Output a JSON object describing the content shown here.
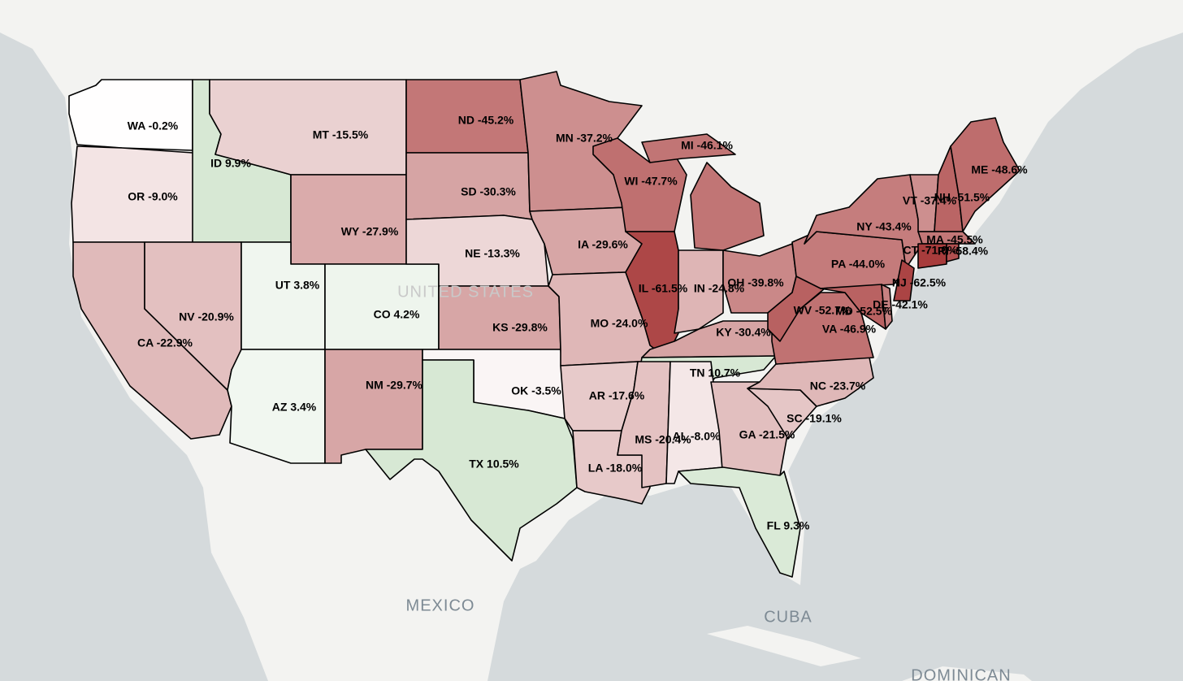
{
  "basemap_labels": [
    "UNITED STATES",
    "MEXICO",
    "CUBA",
    "DOMINICAN"
  ],
  "states": [
    {
      "label": "WA -0.2%",
      "value": -0.2
    },
    {
      "label": "OR -9.0%",
      "value": -9.0
    },
    {
      "label": "CA -22.9%",
      "value": -22.9
    },
    {
      "label": "ID 9.9%",
      "value": 9.9
    },
    {
      "label": "NV -20.9%",
      "value": -20.9
    },
    {
      "label": "MT -15.5%",
      "value": -15.5
    },
    {
      "label": "WY -27.9%",
      "value": -27.9
    },
    {
      "label": "UT 3.8%",
      "value": 3.8
    },
    {
      "label": "AZ 3.4%",
      "value": 3.4
    },
    {
      "label": "CO 4.2%",
      "value": 4.2
    },
    {
      "label": "NM -29.7%",
      "value": -29.7
    },
    {
      "label": "ND -45.2%",
      "value": -45.2
    },
    {
      "label": "SD -30.3%",
      "value": -30.3
    },
    {
      "label": "NE -13.3%",
      "value": -13.3
    },
    {
      "label": "KS -29.8%",
      "value": -29.8
    },
    {
      "label": "OK -3.5%",
      "value": -3.5
    },
    {
      "label": "TX 10.5%",
      "value": 10.5
    },
    {
      "label": "MN -37.2%",
      "value": -37.2
    },
    {
      "label": "IA -29.6%",
      "value": -29.6
    },
    {
      "label": "MO -24.0%",
      "value": -24.0
    },
    {
      "label": "AR -17.6%",
      "value": -17.6
    },
    {
      "label": "LA -18.0%",
      "value": -18.0
    },
    {
      "label": "WI -47.7%",
      "value": -47.7
    },
    {
      "label": "IL -61.5%",
      "value": -61.5
    },
    {
      "label": "MI -46.1%",
      "value": -46.1
    },
    {
      "label": "IN -24.8%",
      "value": -24.8
    },
    {
      "label": "OH -39.8%",
      "value": -39.8
    },
    {
      "label": "KY -30.4%",
      "value": -30.4
    },
    {
      "label": "TN 10.7%",
      "value": 10.7
    },
    {
      "label": "MS -20.4%",
      "value": -20.4
    },
    {
      "label": "AL -8.0%",
      "value": -8.0
    },
    {
      "label": "GA -21.5%",
      "value": -21.5
    },
    {
      "label": "FL 9.3%",
      "value": 9.3
    },
    {
      "label": "SC -19.1%",
      "value": -19.1
    },
    {
      "label": "NC -23.7%",
      "value": -23.7
    },
    {
      "label": "VA -46.9%",
      "value": -46.9
    },
    {
      "label": "WV -52.7%",
      "value": -52.7
    },
    {
      "label": "PA -44.0%",
      "value": -44.0
    },
    {
      "label": "NY -43.4%",
      "value": -43.4
    },
    {
      "label": "NJ -62.5%",
      "value": -62.5
    },
    {
      "label": "MD -52.5%",
      "value": -52.5
    },
    {
      "label": "DE -42.1%",
      "value": -42.1
    },
    {
      "label": "VT -37.4%",
      "value": -37.4
    },
    {
      "label": "NH -51.5%",
      "value": -51.5
    },
    {
      "label": "ME -48.6%",
      "value": -48.6
    },
    {
      "label": "MA -45.5%",
      "value": -45.5
    },
    {
      "label": "CT -71.0%",
      "value": -71.0
    },
    {
      "label": "RI -58.4%",
      "value": -58.4
    }
  ]
}
